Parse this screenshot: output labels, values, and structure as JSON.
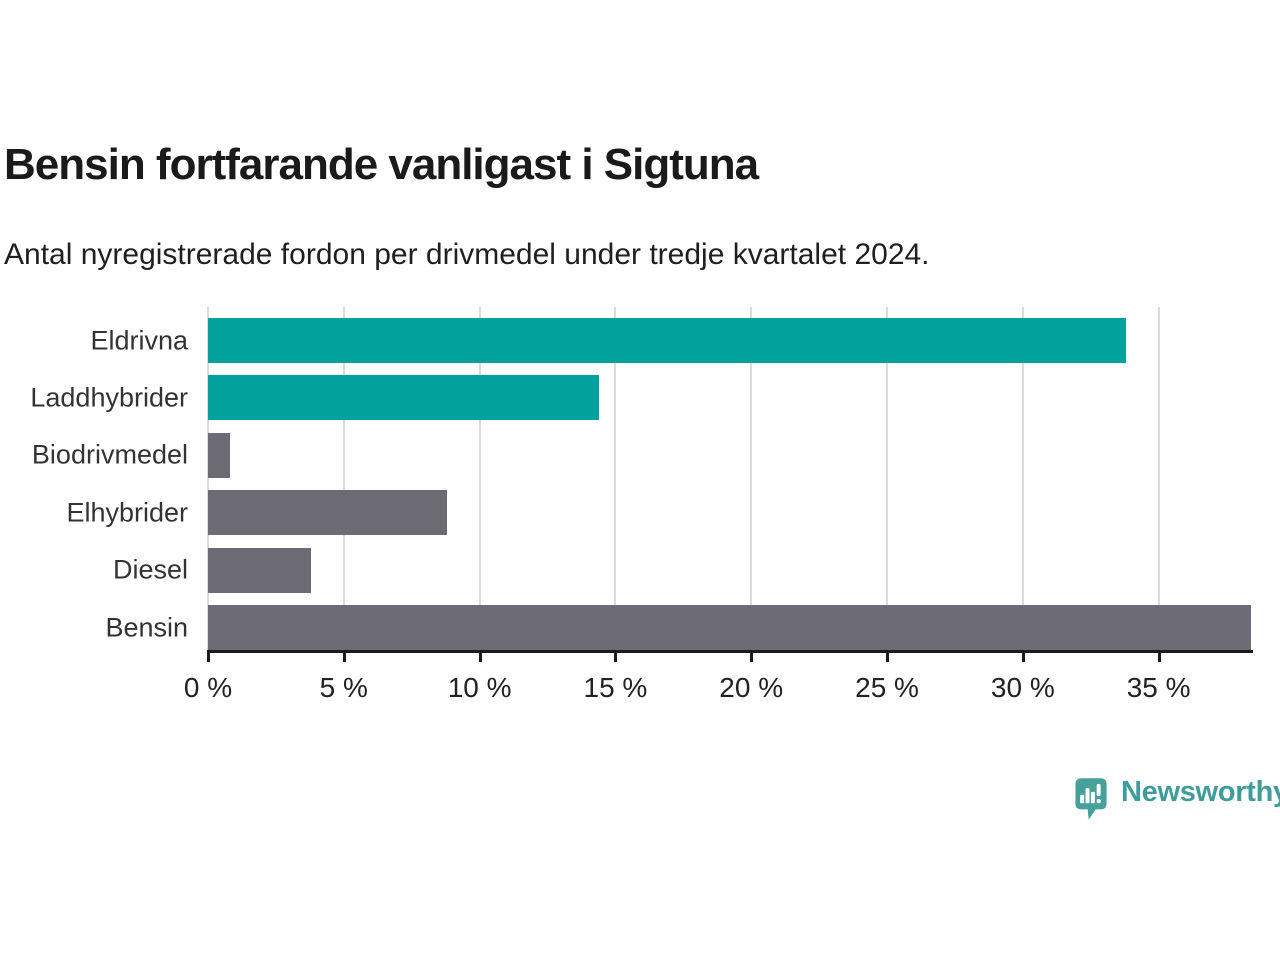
{
  "header": {
    "title": "Bensin fortfarande vanligast i Sigtuna",
    "subtitle": "Antal nyregistrerade fordon per drivmedel under tredje kvartalet 2024."
  },
  "chart_data": {
    "type": "bar",
    "orientation": "horizontal",
    "title": "Bensin fortfarande vanligast i Sigtuna",
    "subtitle": "Antal nyregistrerade fordon per drivmedel under tredje kvartalet 2024.",
    "categories": [
      "Eldrivna",
      "Laddhybrider",
      "Biodrivmedel",
      "Elhybrider",
      "Diesel",
      "Bensin"
    ],
    "values": [
      33.8,
      14.4,
      0.8,
      8.8,
      3.8,
      38.4
    ],
    "unit": "%",
    "bar_colors": [
      "#00a29b",
      "#00a29b",
      "#6c6a73",
      "#6c6a73",
      "#6c6a73",
      "#6c6a73"
    ],
    "xlim": [
      0,
      38.4
    ],
    "x_ticks": [
      0,
      5,
      10,
      15,
      20,
      25,
      30,
      35
    ],
    "x_tick_labels": [
      "0 %",
      "5 %",
      "10 %",
      "15 %",
      "20 %",
      "25 %",
      "30 %",
      "35 %"
    ],
    "grid": true,
    "legend": "none"
  },
  "colors": {
    "accent_teal": "#00a29b",
    "neutral_gray": "#6c6a73",
    "gridline": "#dbdbdb",
    "axis": "#1a1a1a",
    "logo_teal": "#47a09a",
    "logo_text_teal": "#3f9d99"
  },
  "footer": {
    "brand": "Newsworthy",
    "icon": "newsworthy-speech-bubble-chart-icon"
  }
}
